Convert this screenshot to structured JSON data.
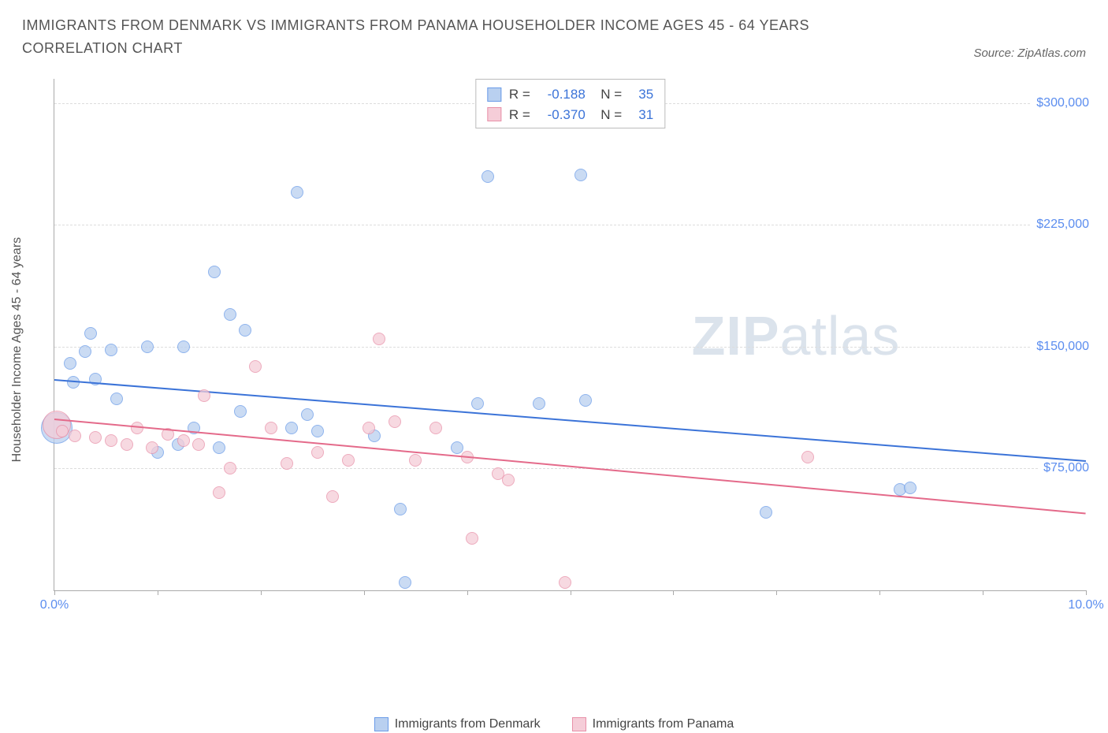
{
  "title": "IMMIGRANTS FROM DENMARK VS IMMIGRANTS FROM PANAMA HOUSEHOLDER INCOME AGES 45 - 64 YEARS CORRELATION CHART",
  "source": "Source: ZipAtlas.com",
  "watermark_bold": "ZIP",
  "watermark_light": "atlas",
  "chart": {
    "type": "scatter",
    "y_axis_title": "Householder Income Ages 45 - 64 years",
    "x_domain": [
      0,
      10
    ],
    "y_domain": [
      0,
      315000
    ],
    "x_ticks": [
      0,
      1,
      2,
      3,
      4,
      5,
      6,
      7,
      8,
      9,
      10
    ],
    "x_tick_labels": {
      "0": "0.0%",
      "10": "10.0%"
    },
    "y_gridlines": [
      75000,
      150000,
      225000,
      300000
    ],
    "y_labels": {
      "75000": "$75,000",
      "150000": "$150,000",
      "225000": "$225,000",
      "300000": "$300,000"
    },
    "background_color": "#ffffff",
    "grid_color": "#dddddd",
    "axis_color": "#aaaaaa",
    "label_color": "#5b8def"
  },
  "series": [
    {
      "name": "Immigrants from Denmark",
      "fill": "#b9d0f0",
      "stroke": "#6a9be8",
      "line_color": "#3b73d8",
      "r": -0.188,
      "n": 35,
      "trend": {
        "x1": 0.0,
        "y1": 130000,
        "x2": 10.0,
        "y2": 80000
      },
      "marker_radius": 8,
      "points": [
        {
          "x": 0.02,
          "y": 100000,
          "r": 20
        },
        {
          "x": 0.15,
          "y": 140000
        },
        {
          "x": 0.18,
          "y": 128000
        },
        {
          "x": 0.35,
          "y": 158000
        },
        {
          "x": 0.3,
          "y": 147000
        },
        {
          "x": 0.4,
          "y": 130000
        },
        {
          "x": 0.55,
          "y": 148000
        },
        {
          "x": 0.6,
          "y": 118000
        },
        {
          "x": 0.9,
          "y": 150000
        },
        {
          "x": 1.0,
          "y": 85000
        },
        {
          "x": 1.2,
          "y": 90000
        },
        {
          "x": 1.25,
          "y": 150000
        },
        {
          "x": 1.35,
          "y": 100000
        },
        {
          "x": 1.55,
          "y": 196000
        },
        {
          "x": 1.6,
          "y": 88000
        },
        {
          "x": 1.7,
          "y": 170000
        },
        {
          "x": 1.8,
          "y": 110000
        },
        {
          "x": 1.85,
          "y": 160000
        },
        {
          "x": 2.3,
          "y": 100000
        },
        {
          "x": 2.35,
          "y": 245000
        },
        {
          "x": 2.45,
          "y": 108000
        },
        {
          "x": 2.55,
          "y": 98000
        },
        {
          "x": 3.1,
          "y": 95000
        },
        {
          "x": 3.35,
          "y": 50000
        },
        {
          "x": 3.4,
          "y": 5000
        },
        {
          "x": 3.9,
          "y": 88000
        },
        {
          "x": 4.1,
          "y": 115000
        },
        {
          "x": 4.2,
          "y": 255000
        },
        {
          "x": 4.7,
          "y": 115000
        },
        {
          "x": 5.1,
          "y": 256000
        },
        {
          "x": 5.15,
          "y": 117000
        },
        {
          "x": 6.9,
          "y": 48000
        },
        {
          "x": 8.2,
          "y": 62000
        },
        {
          "x": 8.3,
          "y": 63000
        }
      ]
    },
    {
      "name": "Immigrants from Panama",
      "fill": "#f5cdd8",
      "stroke": "#e890a8",
      "line_color": "#e46a8a",
      "r": -0.37,
      "n": 31,
      "trend": {
        "x1": 0.0,
        "y1": 106000,
        "x2": 10.0,
        "y2": 48000
      },
      "marker_radius": 8,
      "points": [
        {
          "x": 0.02,
          "y": 102000,
          "r": 18
        },
        {
          "x": 0.08,
          "y": 98000
        },
        {
          "x": 0.2,
          "y": 95000
        },
        {
          "x": 0.4,
          "y": 94000
        },
        {
          "x": 0.55,
          "y": 92000
        },
        {
          "x": 0.7,
          "y": 90000
        },
        {
          "x": 0.8,
          "y": 100000
        },
        {
          "x": 0.95,
          "y": 88000
        },
        {
          "x": 1.1,
          "y": 96000
        },
        {
          "x": 1.25,
          "y": 92000
        },
        {
          "x": 1.4,
          "y": 90000
        },
        {
          "x": 1.45,
          "y": 120000
        },
        {
          "x": 1.6,
          "y": 60000
        },
        {
          "x": 1.7,
          "y": 75000
        },
        {
          "x": 1.95,
          "y": 138000
        },
        {
          "x": 2.1,
          "y": 100000
        },
        {
          "x": 2.25,
          "y": 78000
        },
        {
          "x": 2.55,
          "y": 85000
        },
        {
          "x": 2.7,
          "y": 58000
        },
        {
          "x": 2.85,
          "y": 80000
        },
        {
          "x": 3.05,
          "y": 100000
        },
        {
          "x": 3.15,
          "y": 155000
        },
        {
          "x": 3.3,
          "y": 104000
        },
        {
          "x": 3.5,
          "y": 80000
        },
        {
          "x": 3.7,
          "y": 100000
        },
        {
          "x": 4.0,
          "y": 82000
        },
        {
          "x": 4.05,
          "y": 32000
        },
        {
          "x": 4.3,
          "y": 72000
        },
        {
          "x": 4.4,
          "y": 68000
        },
        {
          "x": 4.95,
          "y": 5000
        },
        {
          "x": 7.3,
          "y": 82000
        }
      ]
    }
  ],
  "bottom_legend": [
    {
      "label": "Immigrants from Denmark",
      "fill": "#b9d0f0",
      "stroke": "#6a9be8"
    },
    {
      "label": "Immigrants from Panama",
      "fill": "#f5cdd8",
      "stroke": "#e890a8"
    }
  ]
}
